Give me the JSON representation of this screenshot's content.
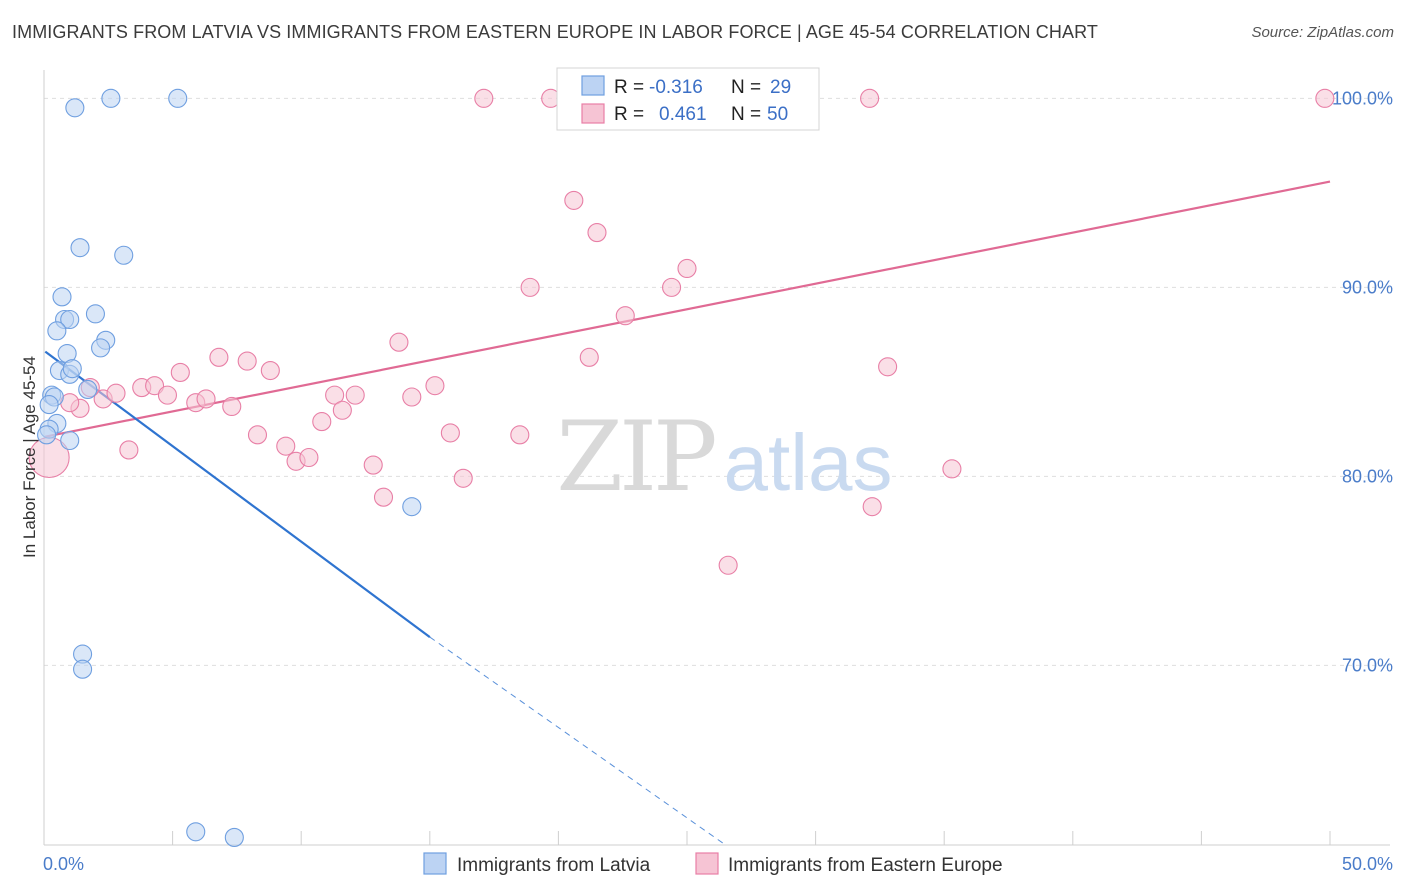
{
  "title": "IMMIGRANTS FROM LATVIA VS IMMIGRANTS FROM EASTERN EUROPE IN LABOR FORCE | AGE 45-54 CORRELATION CHART",
  "source": "Source: ZipAtlas.com",
  "watermark": {
    "zip": "ZIP",
    "atlas": "atlas"
  },
  "colors": {
    "blue": "#6f9fe0",
    "blue_fill": "#bcd3f3",
    "blue_line": "#2f74d0",
    "pink": "#e87fa6",
    "pink_fill": "#f6c4d4",
    "pink_line": "#e06a94",
    "tick": "#4a7cc9",
    "grid": "#dedede"
  },
  "legend_box": {
    "rows": [
      {
        "r_label": "R =",
        "r_value": "-0.316",
        "n_label": "N =",
        "n_value": "29"
      },
      {
        "r_label": "R =",
        "r_value": "0.461",
        "n_label": "N =",
        "n_value": "50"
      }
    ]
  },
  "bottom_legend": [
    "Immigrants from Latvia",
    "Immigrants from Eastern Europe"
  ],
  "chart_data": {
    "type": "scatter",
    "title": "IMMIGRANTS FROM LATVIA VS IMMIGRANTS FROM EASTERN EUROPE IN LABOR FORCE | AGE 45-54 CORRELATION CHART",
    "xlabel": "",
    "ylabel": "In Labor Force | Age 45-54",
    "xlim": [
      0,
      50
    ],
    "ylim": [
      60.5,
      101.5
    ],
    "x_tick_labels": [
      {
        "value": 0,
        "label": "0.0%"
      },
      {
        "value": 50,
        "label": "50.0%"
      }
    ],
    "y_tick_labels": [
      {
        "value": 100,
        "label": "100.0%"
      },
      {
        "value": 90,
        "label": "90.0%"
      },
      {
        "value": 80,
        "label": "80.0%"
      },
      {
        "value": 70,
        "label": "70.0%"
      }
    ],
    "grid": true,
    "legend": "top-center",
    "series": [
      {
        "name": "Immigrants from Latvia",
        "r": -0.316,
        "n": 29,
        "trend": {
          "x": [
            0.05,
            15.0
          ],
          "y": [
            86.6,
            71.5
          ],
          "dashed_to": [
            26.5,
            60.5
          ]
        },
        "points": [
          {
            "x": 1.2,
            "y": 99.5
          },
          {
            "x": 2.6,
            "y": 100.0
          },
          {
            "x": 5.2,
            "y": 100.0
          },
          {
            "x": 1.4,
            "y": 92.1
          },
          {
            "x": 3.1,
            "y": 91.7
          },
          {
            "x": 0.7,
            "y": 89.5
          },
          {
            "x": 0.8,
            "y": 88.3
          },
          {
            "x": 1.0,
            "y": 88.3
          },
          {
            "x": 2.0,
            "y": 88.6
          },
          {
            "x": 0.5,
            "y": 87.7
          },
          {
            "x": 2.4,
            "y": 87.2
          },
          {
            "x": 2.2,
            "y": 86.8
          },
          {
            "x": 0.9,
            "y": 86.5
          },
          {
            "x": 0.6,
            "y": 85.6
          },
          {
            "x": 1.0,
            "y": 85.4
          },
          {
            "x": 1.1,
            "y": 85.7
          },
          {
            "x": 1.7,
            "y": 84.6
          },
          {
            "x": 0.3,
            "y": 84.3
          },
          {
            "x": 0.4,
            "y": 84.2
          },
          {
            "x": 0.2,
            "y": 83.8
          },
          {
            "x": 0.5,
            "y": 82.8
          },
          {
            "x": 0.2,
            "y": 82.5
          },
          {
            "x": 1.0,
            "y": 81.9
          },
          {
            "x": 14.3,
            "y": 78.4
          },
          {
            "x": 1.5,
            "y": 70.6
          },
          {
            "x": 1.5,
            "y": 69.8
          },
          {
            "x": 5.9,
            "y": 61.2
          },
          {
            "x": 7.4,
            "y": 60.9
          },
          {
            "x": 0.1,
            "y": 82.2
          }
        ]
      },
      {
        "name": "Immigrants from Eastern Europe",
        "r": 0.461,
        "n": 50,
        "trend": {
          "x": [
            0.05,
            50.0
          ],
          "y": [
            82.1,
            95.6
          ]
        },
        "points": [
          {
            "x": 0.2,
            "y": 81.0,
            "size": "large"
          },
          {
            "x": 1.4,
            "y": 83.6
          },
          {
            "x": 1.0,
            "y": 83.9
          },
          {
            "x": 2.3,
            "y": 84.1
          },
          {
            "x": 2.8,
            "y": 84.4
          },
          {
            "x": 1.8,
            "y": 84.7
          },
          {
            "x": 3.3,
            "y": 81.4
          },
          {
            "x": 3.8,
            "y": 84.7
          },
          {
            "x": 4.3,
            "y": 84.8
          },
          {
            "x": 4.8,
            "y": 84.3
          },
          {
            "x": 5.3,
            "y": 85.5
          },
          {
            "x": 5.9,
            "y": 83.9
          },
          {
            "x": 6.3,
            "y": 84.1
          },
          {
            "x": 6.8,
            "y": 86.3
          },
          {
            "x": 7.3,
            "y": 83.7
          },
          {
            "x": 7.9,
            "y": 86.1
          },
          {
            "x": 8.3,
            "y": 82.2
          },
          {
            "x": 8.8,
            "y": 85.6
          },
          {
            "x": 9.4,
            "y": 81.6
          },
          {
            "x": 9.8,
            "y": 80.8
          },
          {
            "x": 10.3,
            "y": 81.0
          },
          {
            "x": 10.8,
            "y": 82.9
          },
          {
            "x": 11.3,
            "y": 84.3
          },
          {
            "x": 11.6,
            "y": 83.5
          },
          {
            "x": 12.1,
            "y": 84.3
          },
          {
            "x": 12.8,
            "y": 80.6
          },
          {
            "x": 13.2,
            "y": 78.9
          },
          {
            "x": 13.8,
            "y": 87.1
          },
          {
            "x": 14.3,
            "y": 84.2
          },
          {
            "x": 15.2,
            "y": 84.8
          },
          {
            "x": 15.8,
            "y": 82.3
          },
          {
            "x": 16.3,
            "y": 79.9
          },
          {
            "x": 17.1,
            "y": 100.0
          },
          {
            "x": 18.5,
            "y": 82.2
          },
          {
            "x": 18.9,
            "y": 90.0
          },
          {
            "x": 19.7,
            "y": 100.0
          },
          {
            "x": 20.6,
            "y": 94.6
          },
          {
            "x": 21.2,
            "y": 86.3
          },
          {
            "x": 21.5,
            "y": 92.9
          },
          {
            "x": 22.6,
            "y": 88.5
          },
          {
            "x": 24.4,
            "y": 90.0
          },
          {
            "x": 25.0,
            "y": 91.0
          },
          {
            "x": 26.6,
            "y": 75.3
          },
          {
            "x": 26.8,
            "y": 100.0
          },
          {
            "x": 29.5,
            "y": 100.0
          },
          {
            "x": 32.1,
            "y": 100.0
          },
          {
            "x": 32.2,
            "y": 78.4
          },
          {
            "x": 32.8,
            "y": 85.8
          },
          {
            "x": 35.3,
            "y": 80.4
          },
          {
            "x": 49.8,
            "y": 100.0
          }
        ]
      }
    ]
  }
}
